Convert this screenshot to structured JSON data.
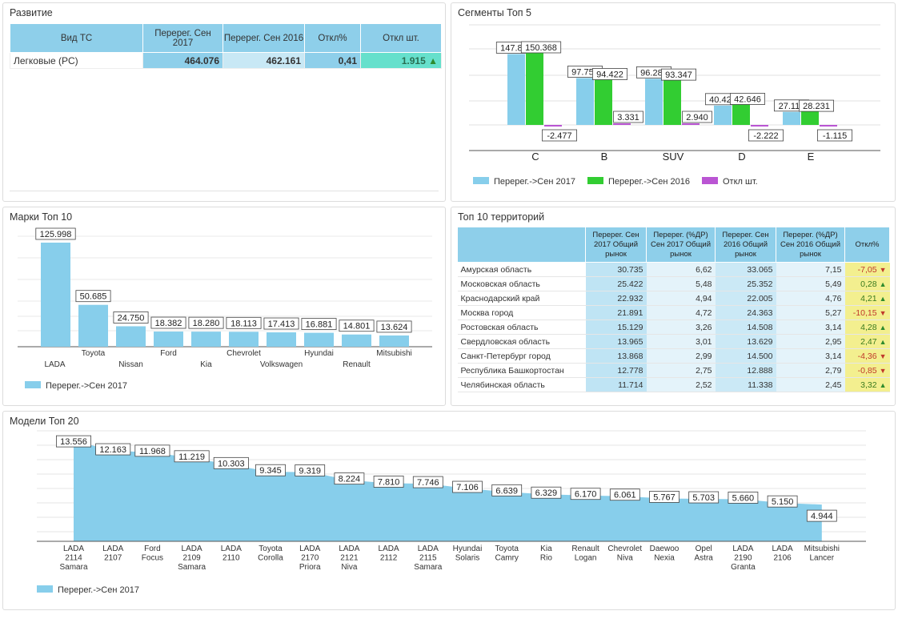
{
  "colors": {
    "blue": "#87CEEB",
    "green": "#32CD32",
    "purple": "#BA55D3",
    "yellow": "#f3ef8f"
  },
  "dev": {
    "title": "Развитие",
    "headers": [
      "Вид ТС",
      "Перерег. Сен 2017",
      "Перерег. Сен 2016",
      "Откл%",
      "Откл шт."
    ],
    "row": {
      "name": "Легковые (PC)",
      "v2017": "464.076",
      "v2016": "462.161",
      "pct": "0,41",
      "diff": "1.915",
      "arrow": "🡅"
    }
  },
  "segments": {
    "title": "Сегменты Топ 5",
    "chart_data": {
      "type": "bar",
      "categories": [
        "C",
        "B",
        "SUV",
        "D",
        "E"
      ],
      "series": [
        {
          "name": "Перерег.->Сен 2017",
          "values": [
            147891,
            97753,
            96287,
            40424,
            27116
          ],
          "labels": [
            "147.891",
            "97.753",
            "96.287",
            "40.424",
            "27.116"
          ]
        },
        {
          "name": "Перерег.->Сен 2016",
          "values": [
            150368,
            94422,
            93347,
            42646,
            28231
          ],
          "labels": [
            "150.368",
            "94.422",
            "93.347",
            "42.646",
            "28.231"
          ]
        },
        {
          "name": "Откл шт.",
          "values": [
            -2477,
            3331,
            2940,
            -2222,
            -1115
          ],
          "labels": [
            "-2.477",
            "3.331",
            "2.940",
            "-2.222",
            "-1.115"
          ]
        }
      ]
    }
  },
  "brands": {
    "title": "Марки Топ 10",
    "chart_data": {
      "type": "bar",
      "categories": [
        "LADA",
        "Toyota",
        "Nissan",
        "Ford",
        "Kia",
        "Chevrolet",
        "Volkswagen",
        "Hyundai",
        "Renault",
        "Mitsubishi"
      ],
      "series": [
        {
          "name": "Перерег.->Сен 2017",
          "values": [
            125998,
            50685,
            24750,
            18382,
            18280,
            18113,
            17413,
            16881,
            14801,
            13624
          ],
          "labels": [
            "125.998",
            "50.685",
            "24.750",
            "18.382",
            "18.280",
            "18.113",
            "17.413",
            "16.881",
            "14.801",
            "13.624"
          ]
        }
      ]
    }
  },
  "territories": {
    "title": "Топ 10 территорий",
    "headers": [
      "",
      "Перерег. Сен 2017 Общий рынок",
      "Перерег. (%ДР) Сен 2017 Общий рынок",
      "Перерег. Сен 2016 Общий рынок",
      "Перерег. (%ДР) Сен 2016 Общий рынок",
      "Откл%"
    ],
    "rows": [
      {
        "name": "Амурская область",
        "v17": "30.735",
        "p17": "6,62",
        "v16": "33.065",
        "p16": "7,15",
        "d": "-7,05",
        "dir": "down"
      },
      {
        "name": "Московская область",
        "v17": "25.422",
        "p17": "5,48",
        "v16": "25.352",
        "p16": "5,49",
        "d": "0,28",
        "dir": "up"
      },
      {
        "name": "Краснодарский край",
        "v17": "22.932",
        "p17": "4,94",
        "v16": "22.005",
        "p16": "4,76",
        "d": "4,21",
        "dir": "up"
      },
      {
        "name": "Москва город",
        "v17": "21.891",
        "p17": "4,72",
        "v16": "24.363",
        "p16": "5,27",
        "d": "-10,15",
        "dir": "down"
      },
      {
        "name": "Ростовская область",
        "v17": "15.129",
        "p17": "3,26",
        "v16": "14.508",
        "p16": "3,14",
        "d": "4,28",
        "dir": "up"
      },
      {
        "name": "Свердловская область",
        "v17": "13.965",
        "p17": "3,01",
        "v16": "13.629",
        "p16": "2,95",
        "d": "2,47",
        "dir": "up"
      },
      {
        "name": "Санкт-Петербург город",
        "v17": "13.868",
        "p17": "2,99",
        "v16": "14.500",
        "p16": "3,14",
        "d": "-4,36",
        "dir": "down"
      },
      {
        "name": "Республика Башкортостан",
        "v17": "12.778",
        "p17": "2,75",
        "v16": "12.888",
        "p16": "2,79",
        "d": "-0,85",
        "dir": "down"
      },
      {
        "name": "Челябинская область",
        "v17": "11.714",
        "p17": "2,52",
        "v16": "11.338",
        "p16": "2,45",
        "d": "3,32",
        "dir": "up"
      }
    ]
  },
  "models": {
    "title": "Модели Топ 20",
    "chart_data": {
      "type": "area",
      "categories": [
        "LADA 2114 Samara",
        "LADA 2107",
        "Ford Focus",
        "LADA 2109 Samara",
        "LADA 2110",
        "Toyota Corolla",
        "LADA 2170 Priora",
        "LADA 2121 Niva",
        "LADA 2112",
        "LADA 2115 Samara",
        "Hyundai Solaris",
        "Toyota Camry",
        "Kia Rio",
        "Renault Logan",
        "Chevrolet Niva",
        "Daewoo Nexia",
        "Opel Astra",
        "LADA 2190 Granta",
        "LADA 2106",
        "Mitsubishi Lancer"
      ],
      "series": [
        {
          "name": "Перерег.->Сен 2017",
          "values": [
            13556,
            12163,
            11968,
            11219,
            10303,
            9345,
            9319,
            8224,
            7810,
            7746,
            7106,
            6639,
            6329,
            6170,
            6061,
            5767,
            5703,
            5660,
            5150,
            4944
          ],
          "labels": [
            "13.556",
            "12.163",
            "11.968",
            "11.219",
            "10.303",
            "9.345",
            "9.319",
            "8.224",
            "7.810",
            "7.746",
            "7.106",
            "6.639",
            "6.329",
            "6.170",
            "6.061",
            "5.767",
            "5.703",
            "5.660",
            "5.150",
            "4.944"
          ]
        }
      ]
    }
  }
}
